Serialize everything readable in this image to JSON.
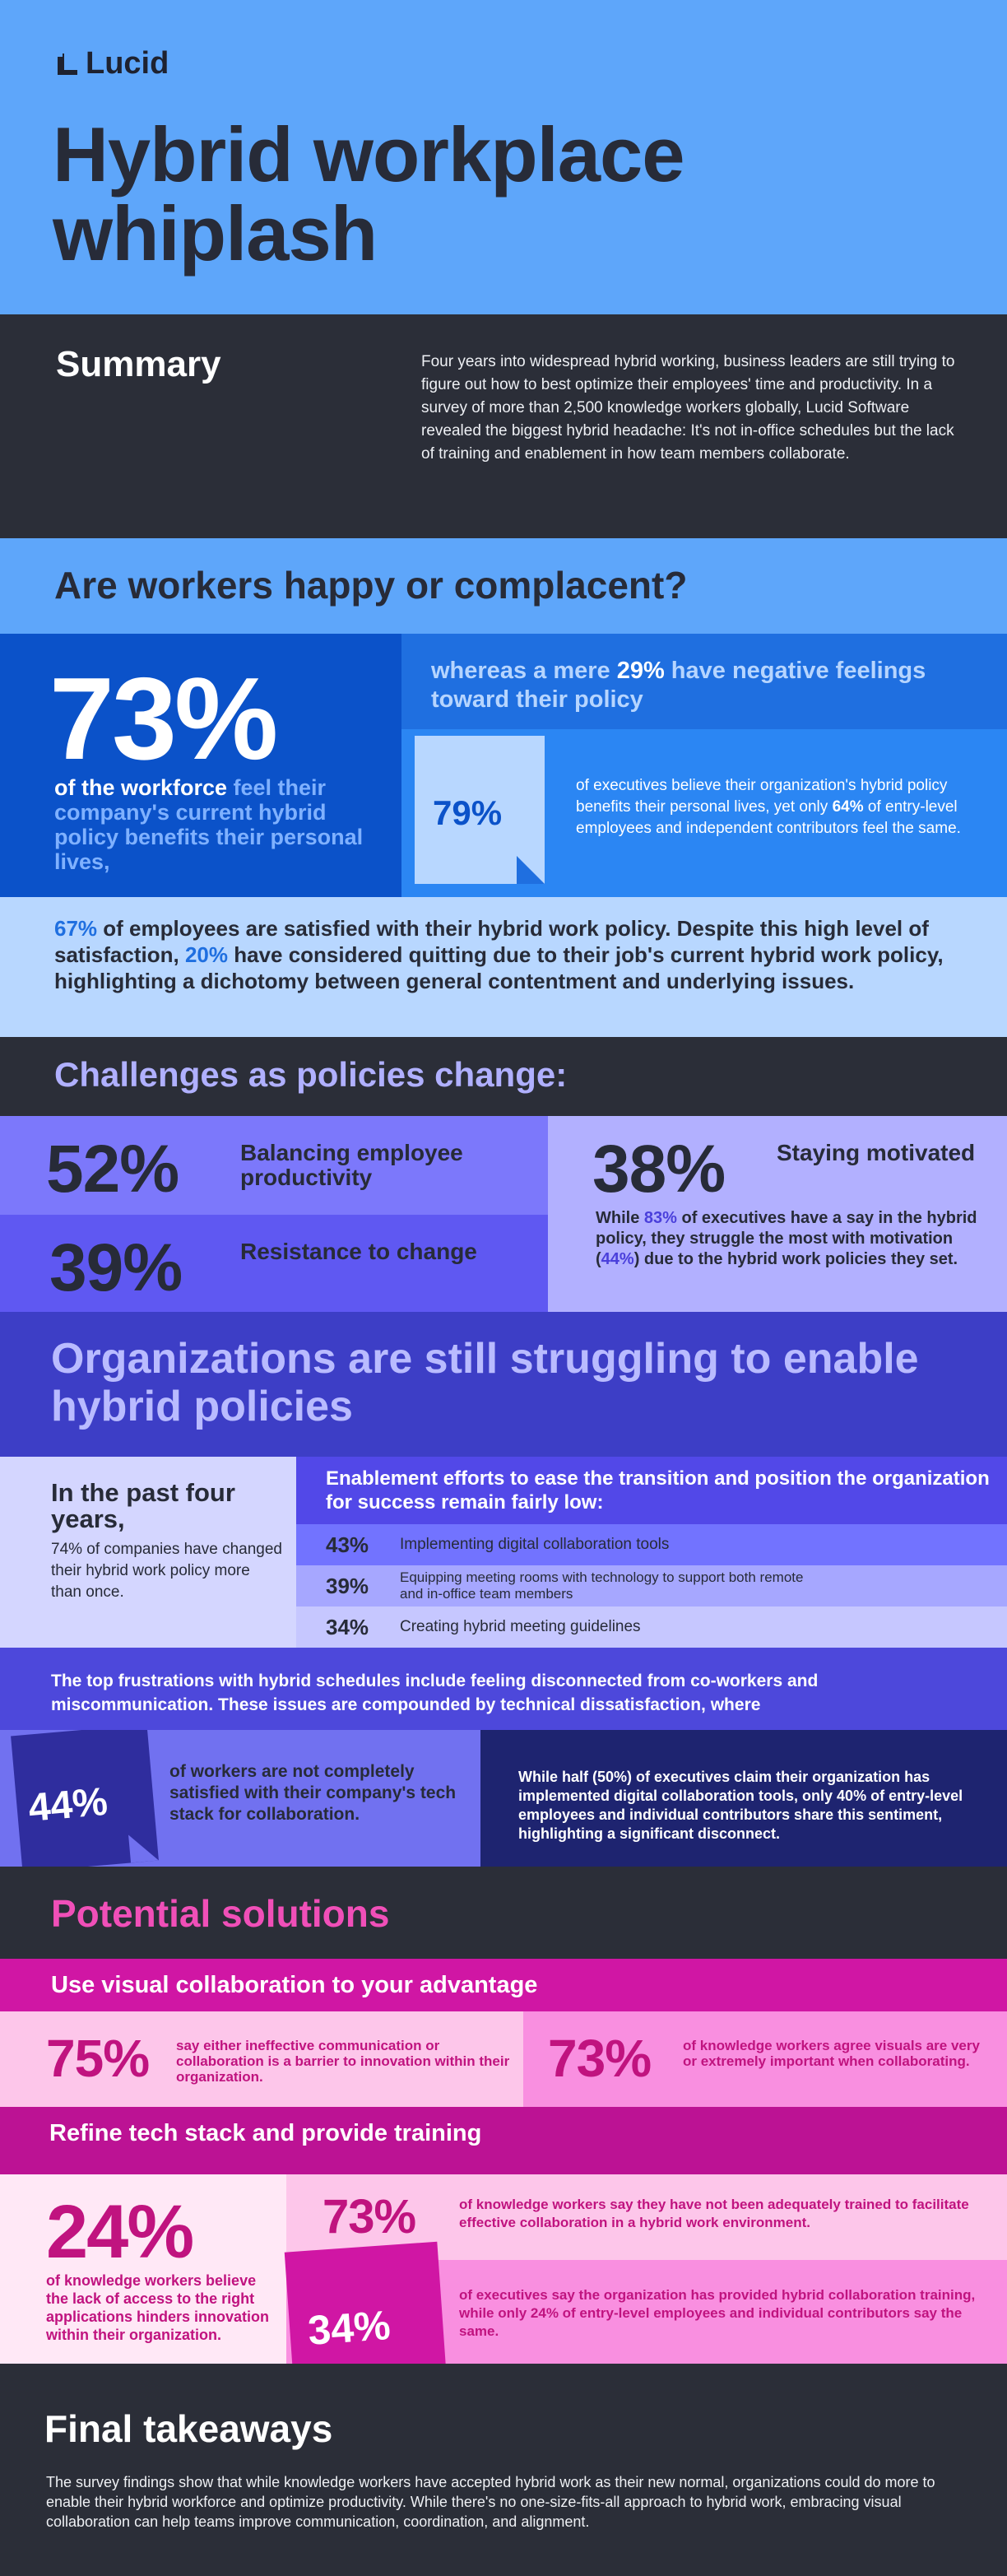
{
  "brand": {
    "logo_text": "Lucid"
  },
  "hero": {
    "title": "Hybrid workplace whiplash"
  },
  "summary": {
    "heading": "Summary",
    "body": "Four years into widespread hybrid working, business leaders are still trying to figure out how to best optimize their employees' time and productivity. In a survey of more than 2,500 knowledge workers globally, Lucid Software revealed the biggest hybrid headache: It's not in-office schedules but the lack of training and enablement in how team members collaborate."
  },
  "happy": {
    "heading": "Are workers happy or complacent?",
    "big_pct": "73%",
    "big_text_a": "of the workforce ",
    "big_text_b": "feel their company's current hybrid policy benefits their personal lives,",
    "neg_a": "whereas a mere ",
    "neg_pct": "29%",
    "neg_b": " have negative feelings toward their policy",
    "exec_pct": "79%",
    "exec_a": "of executives believe their organization's hybrid policy benefits their personal lives, yet only ",
    "exec_pct2": "64%",
    "exec_b": " of entry-level employees and independent contributors feel the same.",
    "sat_pct": "67%",
    "sat_a": " of employees are satisfied with their hybrid work policy. Despite this high level of satisfaction, ",
    "sat_pct2": "20%",
    "sat_b": " have considered quitting due to their job's current hybrid work policy, highlighting a dichotomy between general contentment and underlying issues."
  },
  "challenges": {
    "heading": "Challenges as policies change:",
    "items": [
      {
        "pct": "52%",
        "label": "Balancing employee productivity"
      },
      {
        "pct": "39%",
        "label": "Resistance to change"
      },
      {
        "pct": "38%",
        "label": "Staying motivated"
      }
    ],
    "motivated_a": "While ",
    "motivated_pct": "83%",
    "motivated_b": " of executives have a say in the hybrid policy, they struggle the most with motivation (",
    "motivated_pct2": "44%",
    "motivated_c": ") due to the hybrid work policies they set."
  },
  "struggling": {
    "heading": "Organizations are still struggling to enable hybrid policies",
    "past_title": "In the past four years,",
    "past_body": "74% of companies have changed their hybrid work policy more than once.",
    "enablement_heading": "Enablement efforts to ease the transition and position the organization for success remain fairly low:",
    "efforts": [
      {
        "pct": "43%",
        "label": "Implementing digital collaboration tools"
      },
      {
        "pct": "39%",
        "label": "Equipping meeting rooms with technology to support both remote and in-office team members"
      },
      {
        "pct": "34%",
        "label": "Creating hybrid meeting guidelines"
      }
    ],
    "frustrations": "The top frustrations with hybrid schedules include feeling disconnected from co-workers and miscommunication. These issues are compounded by technical dissatisfaction, where",
    "tech_pct": "44%",
    "tech_text": "of workers are not completely satisfied with their company's tech stack for collaboration.",
    "disconnect_a": "While half (",
    "disconnect_pct": "50%",
    "disconnect_b": ") of executives claim their organization has implemented digital collaboration tools, only ",
    "disconnect_pct2": "40%",
    "disconnect_c": " of entry-level employees and individual contributors share this sentiment, highlighting a significant disconnect."
  },
  "solutions": {
    "heading": "Potential solutions",
    "visual_heading": "Use visual collaboration to your advantage",
    "visual_items": [
      {
        "pct": "75%",
        "text": "say either ineffective communication or collaboration is a barrier to innovation within their organization."
      },
      {
        "pct": "73%",
        "text": "of knowledge workers agree visuals are very or extremely important when collaborating."
      }
    ],
    "tech_heading": "Refine tech stack and provide training",
    "access_pct": "24%",
    "access_text": "of knowledge workers believe the lack of access to the right applications hinders innovation within their organization.",
    "trained_pct": "73%",
    "trained_text": "of knowledge workers say they have not been adequately trained to facilitate effective collaboration in a hybrid work environment.",
    "training_pct": "34%",
    "training_a": "of executives say the organization has provided hybrid collaboration training, while only ",
    "training_pct2": "24%",
    "training_b": " of entry-level employees and individual contributors say the same."
  },
  "final": {
    "heading": "Final takeaways",
    "body": "The survey findings show that while knowledge workers have accepted hybrid work as their new normal, organizations could do more to enable their hybrid workforce and optimize productivity. While there's no one-size-fits-all approach to hybrid work, embracing visual collaboration can help teams improve communication, coordination, and alignment."
  },
  "colors": {
    "sky": "#5ea6fa",
    "ink": "#272b38",
    "violet": "#5248e8",
    "magenta": "#d016a4"
  }
}
